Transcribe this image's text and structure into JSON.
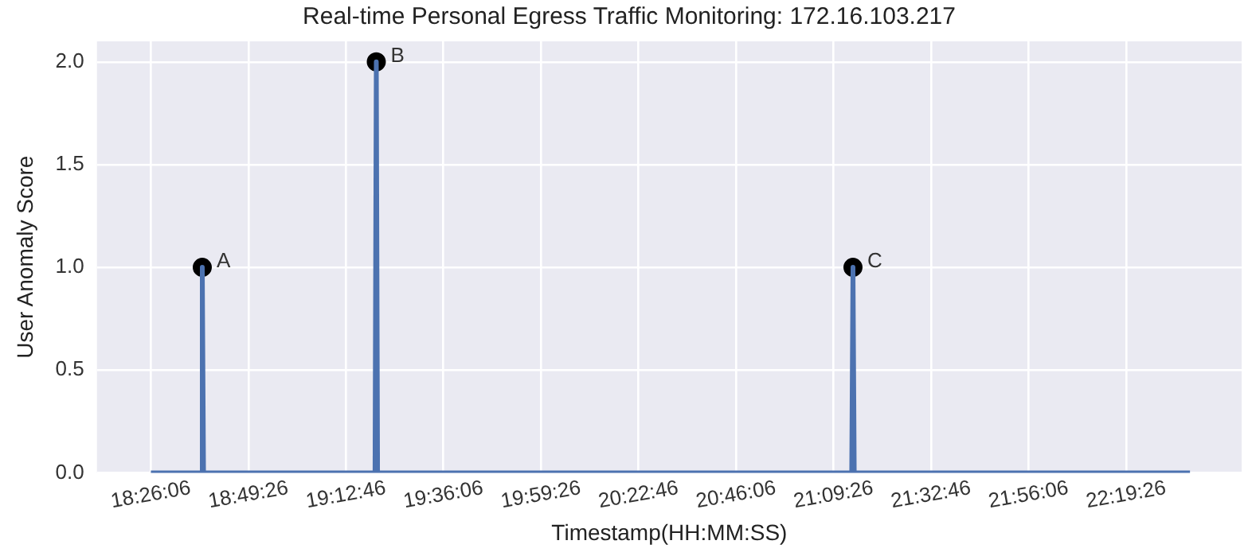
{
  "chart_data": {
    "type": "line",
    "title": "Real-time Personal Egress Traffic Monitoring: 172.16.103.217",
    "xlabel": "Timestamp(HH:MM:SS)",
    "ylabel": "User Anomaly Score",
    "series": [
      {
        "marker": "none",
        "color": "#4c72b0",
        "x": [
          18.435,
          18.635,
          18.64,
          18.645,
          19.329,
          19.334,
          19.339,
          21.23,
          21.235,
          21.24,
          22.579
        ],
        "values": [
          0,
          0,
          1,
          0,
          0,
          2,
          0,
          0,
          1,
          0,
          0
        ]
      },
      {
        "type": "scatter",
        "marker": "circle",
        "color": "#000000",
        "x": [
          18.64,
          19.334,
          21.235
        ],
        "values": [
          1,
          2,
          1
        ]
      }
    ],
    "annotations": [
      {
        "text": "A",
        "x": 18.64,
        "y": 1
      },
      {
        "text": "B",
        "x": 19.334,
        "y": 2
      },
      {
        "text": "C",
        "x": 21.235,
        "y": 1
      }
    ],
    "xlim": [
      18.22,
      22.785
    ],
    "xticks": [
      {
        "value": 18.435,
        "label": "18:26:06"
      },
      {
        "value": 18.82389,
        "label": "18:49:26"
      },
      {
        "value": 19.21278,
        "label": "19:12:46"
      },
      {
        "value": 19.60167,
        "label": "19:36:06"
      },
      {
        "value": 19.99056,
        "label": "19:59:26"
      },
      {
        "value": 20.37944,
        "label": "20:22:46"
      },
      {
        "value": 20.76833,
        "label": "20:46:06"
      },
      {
        "value": 21.15722,
        "label": "21:09:26"
      },
      {
        "value": 21.54611,
        "label": "21:32:46"
      },
      {
        "value": 21.935,
        "label": "21:56:06"
      },
      {
        "value": 22.32389,
        "label": "22:19:26"
      }
    ],
    "ylim": [
      0,
      2.1
    ],
    "yticks": [
      {
        "value": 0,
        "label": "0.0"
      },
      {
        "value": 0.5,
        "label": "0.5"
      },
      {
        "value": 1,
        "label": "1.0"
      },
      {
        "value": 1.5,
        "label": "1.5"
      },
      {
        "value": 2,
        "label": "2.0"
      }
    ],
    "grid": true,
    "line_style": "solid"
  }
}
